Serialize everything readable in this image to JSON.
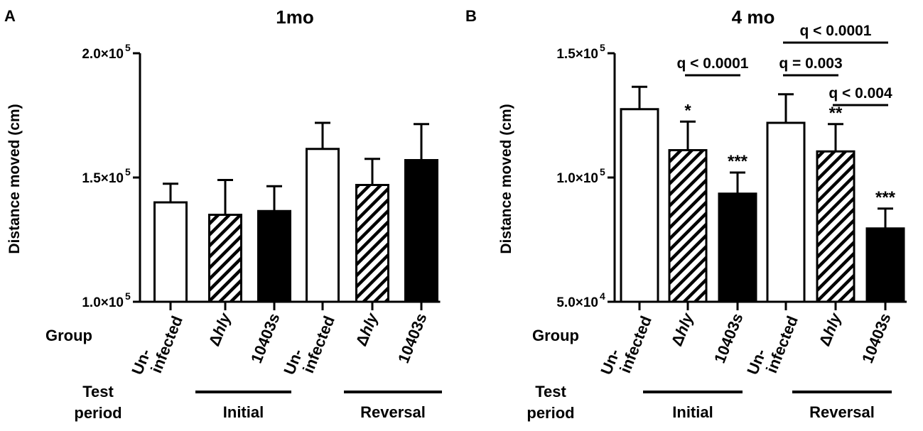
{
  "figure": {
    "groups_label": "Group",
    "test_period_label_1": "Test",
    "test_period_label_2": "period"
  },
  "chart_data": [
    {
      "panel_letter": "A",
      "type": "bar",
      "title": "1mo",
      "ylabel": "Distance moved  (cm)",
      "ylim": [
        100000,
        200000
      ],
      "yticks": [
        {
          "value": 100000,
          "mantissa": "1.0×10",
          "exp": "5"
        },
        {
          "value": 150000,
          "mantissa": "1.5×10",
          "exp": "5"
        },
        {
          "value": 200000,
          "mantissa": "2.0×10",
          "exp": "5"
        }
      ],
      "periods": [
        "Initial",
        "Reversal"
      ],
      "bars": [
        {
          "group": "Un-infected",
          "line1": "Un-",
          "line2": "infected",
          "period": "Initial",
          "value": 140000,
          "error": 7500,
          "fill": "white"
        },
        {
          "group": "Δhly",
          "prefix": "Δ",
          "italic": "hly",
          "period": "Initial",
          "value": 135000,
          "error": 14000,
          "fill": "hatch"
        },
        {
          "group": "10403s",
          "line1": "10403s",
          "period": "Initial",
          "value": 136500,
          "error": 10000,
          "fill": "black"
        },
        {
          "group": "Un-infected",
          "line1": "Un-",
          "line2": "infected",
          "period": "Reversal",
          "value": 161500,
          "error": 10500,
          "fill": "white"
        },
        {
          "group": "Δhly",
          "prefix": "Δ",
          "italic": "hly",
          "period": "Reversal",
          "value": 147000,
          "error": 10500,
          "fill": "hatch"
        },
        {
          "group": "10403s",
          "line1": "10403s",
          "period": "Reversal",
          "value": 157000,
          "error": 14500,
          "fill": "black"
        }
      ],
      "annotations": [],
      "brackets": []
    },
    {
      "panel_letter": "B",
      "type": "bar",
      "title": "4 mo",
      "ylabel": "Distance moved  (cm)",
      "ylim": [
        50000,
        150000
      ],
      "yticks": [
        {
          "value": 50000,
          "mantissa": "5.0×10",
          "exp": "4"
        },
        {
          "value": 100000,
          "mantissa": "1.0×10",
          "exp": "5"
        },
        {
          "value": 150000,
          "mantissa": "1.5×10",
          "exp": "5"
        }
      ],
      "periods": [
        "Initial",
        "Reversal"
      ],
      "bars": [
        {
          "group": "Un-infected",
          "line1": "Un-",
          "line2": "infected",
          "period": "Initial",
          "value": 127500,
          "error": 9000,
          "fill": "white"
        },
        {
          "group": "Δhly",
          "prefix": "Δ",
          "italic": "hly",
          "period": "Initial",
          "value": 111000,
          "error": 11500,
          "fill": "hatch",
          "star": "*"
        },
        {
          "group": "10403s",
          "line1": "10403s",
          "period": "Initial",
          "value": 93500,
          "error": 8500,
          "fill": "black",
          "star": "***"
        },
        {
          "group": "Un-infected",
          "line1": "Un-",
          "line2": "infected",
          "period": "Reversal",
          "value": 122000,
          "error": 11500,
          "fill": "white"
        },
        {
          "group": "Δhly",
          "prefix": "Δ",
          "italic": "hly",
          "period": "Reversal",
          "value": 110500,
          "error": 11000,
          "fill": "hatch",
          "star": "**"
        },
        {
          "group": "10403s",
          "line1": "10403s",
          "period": "Reversal",
          "value": 79500,
          "error": 8000,
          "fill": "black",
          "star": "***"
        }
      ],
      "brackets": [
        {
          "from": 1,
          "to": 2,
          "level": 1,
          "label": "q < 0.0001"
        },
        {
          "from": 3,
          "to": 4,
          "level": 1,
          "label": "q = 0.003"
        },
        {
          "from": 4,
          "to": 5,
          "level": 0,
          "label": "q < 0.004"
        },
        {
          "from": 3,
          "to": 5,
          "level": 2,
          "label": "q < 0.0001"
        }
      ]
    }
  ]
}
